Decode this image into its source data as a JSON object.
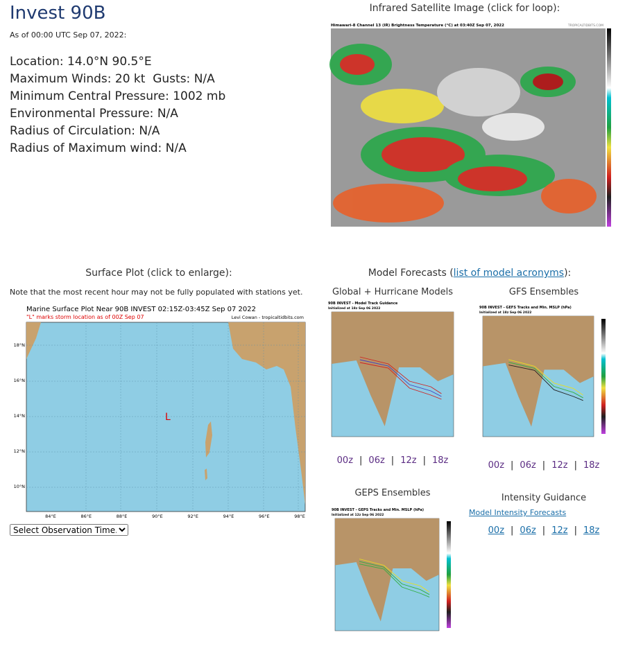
{
  "header": {
    "title": "Invest 90B",
    "as_of": "As of 00:00 UTC Sep 07, 2022:"
  },
  "details": [
    "Location: 14.0°N 90.5°E",
    "Maximum Winds: 20 kt  Gusts: N/A",
    "Minimum Central Pressure: 1002 mb",
    "Environmental Pressure: N/A",
    "Radius of Circulation: N/A",
    "Radius of Maximum wind: N/A"
  ],
  "satellite": {
    "caption": "Infrared Satellite Image (click for loop):",
    "image_title": "Himawari-8 Channel 13 (IR) Brightness Temperature (°C) at 03:40Z Sep 07, 2022",
    "credit": "TROPICALTIDBITS.COM"
  },
  "surface": {
    "caption": "Surface Plot (click to enlarge):",
    "note": "Note that the most recent hour may not be fully populated with stations yet.",
    "image_title": "Marine Surface Plot Near 90B INVEST 02:15Z-03:45Z Sep 07 2022",
    "image_subtitle": "\"L\" marks storm location as of 00Z Sep 07",
    "credit": "Levi Cowan - tropicaltidbits.com",
    "storm_marker": "L",
    "lon_labels": [
      "84°E",
      "86°E",
      "88°E",
      "90°E",
      "92°E",
      "94°E",
      "96°E",
      "98°E"
    ],
    "lat_labels": [
      "18°N",
      "16°N",
      "14°N",
      "12°N",
      "10°N"
    ],
    "select": "Select Observation Time..."
  },
  "models": {
    "caption_prefix": "Model Forecasts (",
    "caption_link": "list of model acronyms",
    "caption_suffix": "):",
    "separator": "|",
    "global": {
      "caption": "Global + Hurricane Models",
      "image_title": "90B INVEST - Model Track Guidance",
      "image_subtitle": "Initialized at 18z Sep 06 2022",
      "times": [
        "00z",
        "06z",
        "12z",
        "18z"
      ]
    },
    "gfs": {
      "caption": "GFS Ensembles",
      "image_title": "90B INVEST - GEFS Tracks and Min. MSLP (hPa)",
      "image_subtitle": "Initialized at 18z Sep 06 2022",
      "times": [
        "00z",
        "06z",
        "12z",
        "18z"
      ]
    },
    "geps": {
      "caption": "GEPS Ensembles",
      "image_title": "90B INVEST - GEPS Tracks and Min. MSLP (hPa)",
      "image_subtitle": "Initialized at 12z Sep 06 2022"
    },
    "intensity": {
      "caption": "Intensity Guidance",
      "link": "Model Intensity Forecasts",
      "times": [
        "00z",
        "06z",
        "12z",
        "18z"
      ]
    }
  }
}
